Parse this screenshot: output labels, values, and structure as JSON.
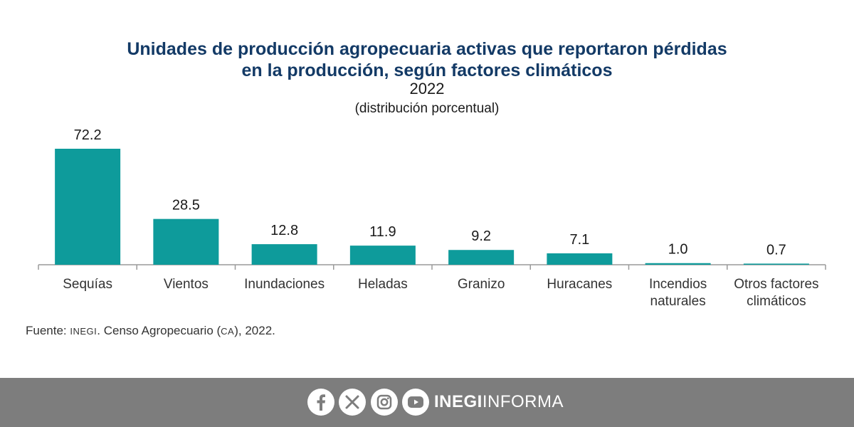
{
  "chart_data": {
    "type": "bar",
    "title_line1": "Unidades de producción agropecuaria activas que reportaron pérdidas",
    "title_line2": "en la producción, según factores climáticos",
    "year": "2022",
    "subtitle": "(distribución porcentual)",
    "categories": [
      [
        "Sequías"
      ],
      [
        "Vientos"
      ],
      [
        "Inundaciones"
      ],
      [
        "Heladas"
      ],
      [
        "Granizo"
      ],
      [
        "Huracanes"
      ],
      [
        "Incendios",
        "naturales"
      ],
      [
        "Otros factores",
        "climáticos"
      ]
    ],
    "values": [
      72.2,
      28.5,
      12.8,
      11.9,
      9.2,
      7.1,
      1.0,
      0.7
    ],
    "data_labels": [
      "72.2",
      "28.5",
      "12.8",
      "11.9",
      "9.2",
      "7.1",
      "1.0",
      "0.7"
    ],
    "ylim": [
      0,
      72.2
    ],
    "grid": false,
    "bar_color": "#0e9b9b"
  },
  "source": {
    "prefix": "Fuente: ",
    "org": "INEGI",
    "middle": ". Censo Agropecuario (",
    "abbr": "CA",
    "suffix": "), 2022."
  },
  "footer": {
    "brand_strong": "INEGI",
    "brand_light": "INFORMA",
    "icons": [
      "facebook-icon",
      "x-icon",
      "instagram-icon",
      "youtube-icon"
    ],
    "background_color": "#7d7d7d"
  }
}
